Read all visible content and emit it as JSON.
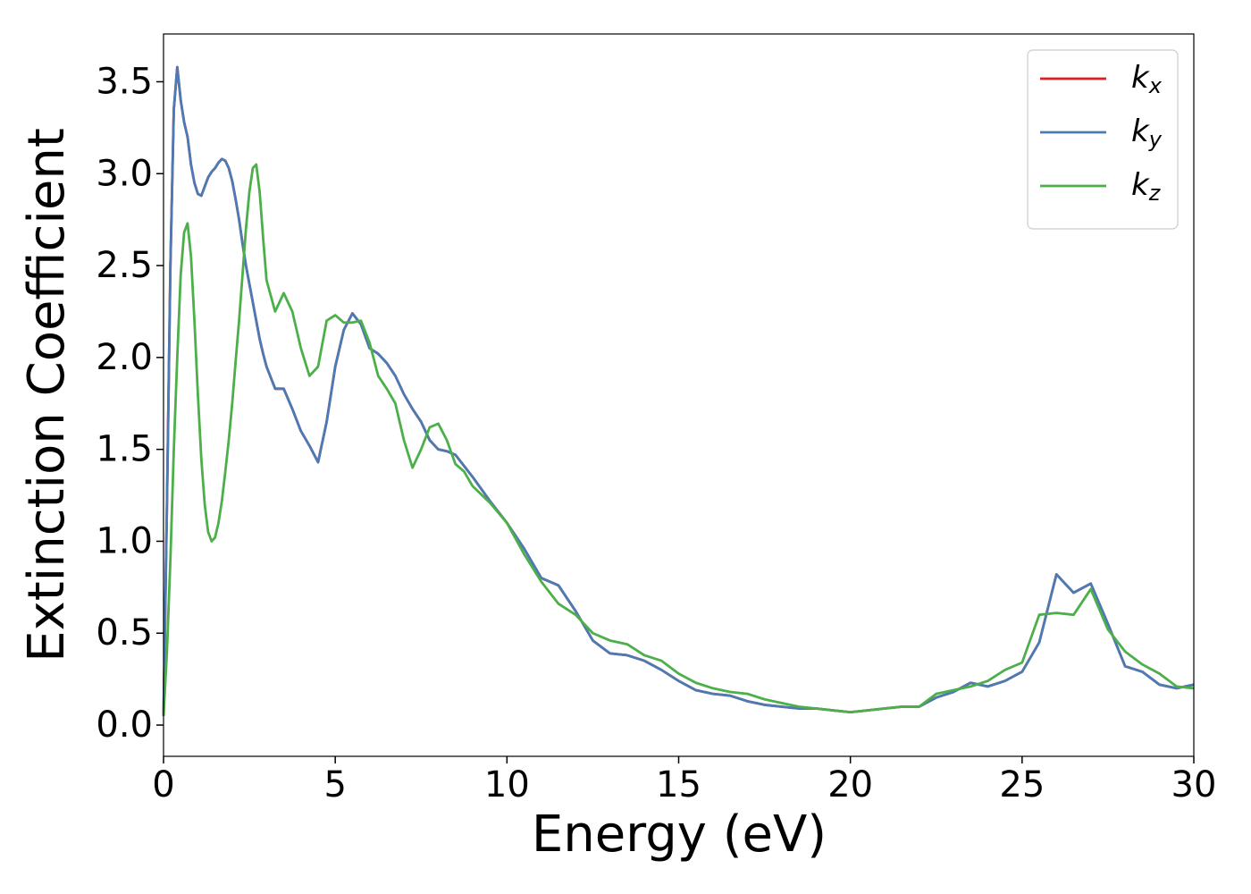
{
  "chart_data": {
    "type": "line",
    "xlabel": "Energy (eV)",
    "ylabel": "Extinction Coefficient",
    "xlim": [
      0,
      30
    ],
    "ylim": [
      -0.17,
      3.76
    ],
    "xticks": [
      0,
      5,
      10,
      15,
      20,
      25,
      30
    ],
    "yticks": [
      {
        "value": 0,
        "label": "0.0"
      },
      0.5,
      {
        "value": 1,
        "label": "1.0"
      },
      1.5,
      {
        "value": 2,
        "label": "2.0"
      },
      2.5,
      {
        "value": 3,
        "label": "3.0"
      },
      3.5
    ],
    "legend": "upper right",
    "x": [
      0,
      0.1,
      0.2,
      0.3,
      0.4,
      0.5,
      0.6,
      0.7,
      0.8,
      0.9,
      1.0,
      1.1,
      1.2,
      1.3,
      1.4,
      1.5,
      1.6,
      1.7,
      1.8,
      1.9,
      2.0,
      2.1,
      2.2,
      2.3,
      2.4,
      2.5,
      2.6,
      2.7,
      2.8,
      2.9,
      3.0,
      3.25,
      3.5,
      3.75,
      4.0,
      4.25,
      4.5,
      4.75,
      5.0,
      5.25,
      5.5,
      5.75,
      6.0,
      6.25,
      6.5,
      6.75,
      7.0,
      7.25,
      7.5,
      7.75,
      8.0,
      8.25,
      8.5,
      8.75,
      9.0,
      9.5,
      10,
      10.5,
      11,
      11.5,
      12,
      12.5,
      13,
      13.5,
      14,
      14.5,
      15,
      15.5,
      16,
      16.5,
      17,
      17.5,
      18,
      18.5,
      19,
      19.5,
      20,
      20.5,
      21,
      21.5,
      22,
      22.5,
      23,
      23.5,
      24,
      24.5,
      25,
      25.5,
      26,
      26.5,
      27,
      27.5,
      28,
      28.5,
      29,
      29.5,
      30
    ],
    "series": [
      {
        "name": "kx",
        "color": "#e41a1c",
        "values": [
          0.05,
          1.2,
          2.5,
          3.35,
          3.58,
          3.4,
          3.28,
          3.2,
          3.05,
          2.95,
          2.89,
          2.88,
          2.93,
          2.98,
          3.01,
          3.03,
          3.06,
          3.08,
          3.07,
          3.03,
          2.96,
          2.86,
          2.75,
          2.62,
          2.5,
          2.4,
          2.3,
          2.2,
          2.1,
          2.02,
          1.95,
          1.83,
          1.83,
          1.72,
          1.6,
          1.52,
          1.43,
          1.65,
          1.95,
          2.15,
          2.24,
          2.18,
          2.05,
          2.02,
          1.97,
          1.9,
          1.8,
          1.72,
          1.65,
          1.55,
          1.5,
          1.49,
          1.47,
          1.41,
          1.35,
          1.22,
          1.1,
          0.96,
          0.8,
          0.76,
          0.62,
          0.46,
          0.39,
          0.38,
          0.35,
          0.3,
          0.24,
          0.19,
          0.17,
          0.16,
          0.13,
          0.11,
          0.1,
          0.09,
          0.09,
          0.08,
          0.07,
          0.08,
          0.09,
          0.1,
          0.1,
          0.15,
          0.18,
          0.23,
          0.21,
          0.24,
          0.29,
          0.45,
          0.82,
          0.72,
          0.77,
          0.55,
          0.32,
          0.29,
          0.22,
          0.2,
          0.22
        ]
      },
      {
        "name": "ky",
        "color": "#4a7bb5",
        "values": [
          0.05,
          1.2,
          2.5,
          3.35,
          3.58,
          3.4,
          3.28,
          3.2,
          3.05,
          2.95,
          2.89,
          2.88,
          2.93,
          2.98,
          3.01,
          3.03,
          3.06,
          3.08,
          3.07,
          3.03,
          2.96,
          2.86,
          2.75,
          2.62,
          2.5,
          2.4,
          2.3,
          2.2,
          2.1,
          2.02,
          1.95,
          1.83,
          1.83,
          1.72,
          1.6,
          1.52,
          1.43,
          1.65,
          1.95,
          2.15,
          2.24,
          2.18,
          2.05,
          2.02,
          1.97,
          1.9,
          1.8,
          1.72,
          1.65,
          1.55,
          1.5,
          1.49,
          1.47,
          1.41,
          1.35,
          1.22,
          1.1,
          0.96,
          0.8,
          0.76,
          0.62,
          0.46,
          0.39,
          0.38,
          0.35,
          0.3,
          0.24,
          0.19,
          0.17,
          0.16,
          0.13,
          0.11,
          0.1,
          0.09,
          0.09,
          0.08,
          0.07,
          0.08,
          0.09,
          0.1,
          0.1,
          0.15,
          0.18,
          0.23,
          0.21,
          0.24,
          0.29,
          0.45,
          0.82,
          0.72,
          0.77,
          0.55,
          0.32,
          0.29,
          0.22,
          0.2,
          0.22
        ]
      },
      {
        "name": "kz",
        "color": "#4daf4a",
        "values": [
          0.05,
          0.4,
          0.9,
          1.5,
          2.0,
          2.45,
          2.68,
          2.73,
          2.55,
          2.2,
          1.8,
          1.45,
          1.2,
          1.05,
          1.0,
          1.02,
          1.1,
          1.22,
          1.38,
          1.55,
          1.75,
          1.98,
          2.2,
          2.45,
          2.7,
          2.9,
          3.03,
          3.05,
          2.9,
          2.65,
          2.42,
          2.25,
          2.35,
          2.25,
          2.05,
          1.9,
          1.95,
          2.2,
          2.23,
          2.19,
          2.19,
          2.2,
          2.08,
          1.9,
          1.83,
          1.75,
          1.55,
          1.4,
          1.5,
          1.62,
          1.64,
          1.55,
          1.42,
          1.38,
          1.3,
          1.21,
          1.1,
          0.93,
          0.78,
          0.66,
          0.6,
          0.5,
          0.46,
          0.44,
          0.38,
          0.35,
          0.28,
          0.23,
          0.2,
          0.18,
          0.17,
          0.14,
          0.12,
          0.1,
          0.09,
          0.08,
          0.07,
          0.08,
          0.09,
          0.1,
          0.1,
          0.17,
          0.19,
          0.21,
          0.24,
          0.3,
          0.34,
          0.6,
          0.61,
          0.6,
          0.74,
          0.52,
          0.4,
          0.33,
          0.28,
          0.21,
          0.2
        ]
      }
    ]
  }
}
